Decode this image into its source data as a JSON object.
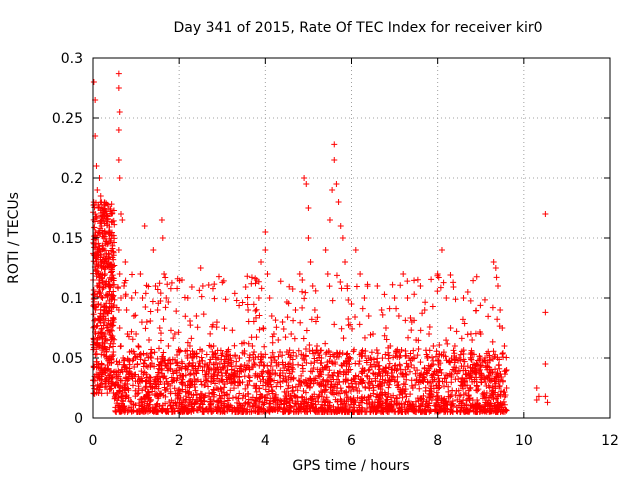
{
  "chart_data": {
    "type": "scatter",
    "title": "Day 341 of 2015, Rate Of TEC Index for receiver kir0",
    "xlabel": "GPS time / hours",
    "ylabel": "ROTI / TECUs",
    "xlim": [
      0,
      12
    ],
    "ylim": [
      0,
      0.3
    ],
    "xticks": [
      "0",
      "2",
      "4",
      "6",
      "8",
      "10",
      "12"
    ],
    "yticks": [
      "0",
      "0.05",
      "0.1",
      "0.15",
      "0.2",
      "0.25",
      "0.3"
    ],
    "grid": true,
    "marker": "+",
    "color": "#ff0000",
    "series": [
      {
        "name": "ROTI",
        "points": [
          [
            0.02,
            0.28
          ],
          [
            0.05,
            0.265
          ],
          [
            0.05,
            0.235
          ],
          [
            0.08,
            0.21
          ],
          [
            0.1,
            0.19
          ],
          [
            0.12,
            0.175
          ],
          [
            0.15,
            0.2
          ],
          [
            0.18,
            0.185
          ],
          [
            0.2,
            0.16
          ],
          [
            0.05,
            0.15
          ],
          [
            0.08,
            0.13
          ],
          [
            0.1,
            0.11
          ],
          [
            0.12,
            0.095
          ],
          [
            0.15,
            0.14
          ],
          [
            0.18,
            0.12
          ],
          [
            0.22,
            0.1
          ],
          [
            0.25,
            0.085
          ],
          [
            0.28,
            0.07
          ],
          [
            0.3,
            0.11
          ],
          [
            0.03,
            0.1
          ],
          [
            0.06,
            0.09
          ],
          [
            0.2,
            0.13
          ],
          [
            0.25,
            0.15
          ],
          [
            0.28,
            0.12
          ],
          [
            0.6,
            0.287
          ],
          [
            0.6,
            0.275
          ],
          [
            0.62,
            0.255
          ],
          [
            0.6,
            0.24
          ],
          [
            0.6,
            0.215
          ],
          [
            0.62,
            0.2
          ],
          [
            0.65,
            0.17
          ],
          [
            0.68,
            0.165
          ],
          [
            0.6,
            0.14
          ],
          [
            0.62,
            0.12
          ],
          [
            0.65,
            0.1
          ],
          [
            0.6,
            0.09
          ],
          [
            0.62,
            0.075
          ],
          [
            0.65,
            0.06
          ],
          [
            0.7,
            0.05
          ],
          [
            0.72,
            0.11
          ],
          [
            0.75,
            0.13
          ],
          [
            0.78,
            0.09
          ],
          [
            0.8,
            0.07
          ],
          [
            0.85,
            0.055
          ],
          [
            0.9,
            0.1
          ],
          [
            0.95,
            0.085
          ],
          [
            1.0,
            0.07
          ],
          [
            1.05,
            0.06
          ],
          [
            1.1,
            0.12
          ],
          [
            1.15,
            0.1
          ],
          [
            1.2,
            0.16
          ],
          [
            1.25,
            0.08
          ],
          [
            1.3,
            0.065
          ],
          [
            1.35,
            0.05
          ],
          [
            1.4,
            0.14
          ],
          [
            1.45,
            0.11
          ],
          [
            1.5,
            0.09
          ],
          [
            1.55,
            0.075
          ],
          [
            1.6,
            0.165
          ],
          [
            1.62,
            0.15
          ],
          [
            1.65,
            0.12
          ],
          [
            1.7,
            0.1
          ],
          [
            1.75,
            0.06
          ],
          [
            1.8,
            0.045
          ],
          [
            1.9,
            0.07
          ],
          [
            2.0,
            0.04
          ],
          [
            2.1,
            0.035
          ],
          [
            2.2,
            0.1
          ],
          [
            2.25,
            0.06
          ],
          [
            2.3,
            0.05
          ],
          [
            2.4,
            0.085
          ],
          [
            2.5,
            0.125
          ],
          [
            2.55,
            0.11
          ],
          [
            2.6,
            0.045
          ],
          [
            2.7,
            0.04
          ],
          [
            2.8,
            0.06
          ],
          [
            2.9,
            0.05
          ],
          [
            3.0,
            0.035
          ],
          [
            3.1,
            0.055
          ],
          [
            3.2,
            0.045
          ],
          [
            3.3,
            0.03
          ],
          [
            3.4,
            0.05
          ],
          [
            3.5,
            0.04
          ],
          [
            3.6,
            0.09
          ],
          [
            3.7,
            0.06
          ],
          [
            3.8,
            0.115
          ],
          [
            3.85,
            0.1
          ],
          [
            3.9,
            0.13
          ],
          [
            3.95,
            0.075
          ],
          [
            4.0,
            0.155
          ],
          [
            4.0,
            0.14
          ],
          [
            4.05,
            0.12
          ],
          [
            4.1,
            0.1
          ],
          [
            4.15,
            0.085
          ],
          [
            4.2,
            0.07
          ],
          [
            4.3,
            0.065
          ],
          [
            4.4,
            0.08
          ],
          [
            4.5,
            0.055
          ],
          [
            4.6,
            0.07
          ],
          [
            4.7,
            0.09
          ],
          [
            4.8,
            0.12
          ],
          [
            4.9,
            0.2
          ],
          [
            4.95,
            0.195
          ],
          [
            5.0,
            0.175
          ],
          [
            5.0,
            0.15
          ],
          [
            5.05,
            0.13
          ],
          [
            5.1,
            0.11
          ],
          [
            5.15,
            0.09
          ],
          [
            5.2,
            0.06
          ],
          [
            5.3,
            0.05
          ],
          [
            5.4,
            0.14
          ],
          [
            5.45,
            0.12
          ],
          [
            5.5,
            0.165
          ],
          [
            5.55,
            0.19
          ],
          [
            5.6,
            0.228
          ],
          [
            5.6,
            0.215
          ],
          [
            5.65,
            0.195
          ],
          [
            5.7,
            0.18
          ],
          [
            5.75,
            0.16
          ],
          [
            5.8,
            0.15
          ],
          [
            5.85,
            0.13
          ],
          [
            5.9,
            0.11
          ],
          [
            6.0,
            0.095
          ],
          [
            6.1,
            0.14
          ],
          [
            6.2,
            0.12
          ],
          [
            6.3,
            0.1
          ],
          [
            6.4,
            0.085
          ],
          [
            6.5,
            0.07
          ],
          [
            6.6,
            0.11
          ],
          [
            6.7,
            0.09
          ],
          [
            6.8,
            0.075
          ],
          [
            6.9,
            0.06
          ],
          [
            7.0,
            0.1
          ],
          [
            7.1,
            0.085
          ],
          [
            7.2,
            0.12
          ],
          [
            7.3,
            0.1
          ],
          [
            7.4,
            0.08
          ],
          [
            7.5,
            0.065
          ],
          [
            7.6,
            0.11
          ],
          [
            7.7,
            0.09
          ],
          [
            7.8,
            0.07
          ],
          [
            7.9,
            0.06
          ],
          [
            8.0,
            0.12
          ],
          [
            8.1,
            0.14
          ],
          [
            8.2,
            0.1
          ],
          [
            8.3,
            0.075
          ],
          [
            8.4,
            0.06
          ],
          [
            8.5,
            0.05
          ],
          [
            8.6,
            0.1
          ],
          [
            8.7,
            0.105
          ],
          [
            8.8,
            0.065
          ],
          [
            8.9,
            0.045
          ],
          [
            9.0,
            0.07
          ],
          [
            9.1,
            0.05
          ],
          [
            9.2,
            0.04
          ],
          [
            9.3,
            0.13
          ],
          [
            9.35,
            0.125
          ],
          [
            9.4,
            0.11
          ],
          [
            9.45,
            0.09
          ],
          [
            9.5,
            0.075
          ],
          [
            9.55,
            0.06
          ],
          [
            9.6,
            0.04
          ],
          [
            9.6,
            0.025
          ],
          [
            10.3,
            0.025
          ],
          [
            10.3,
            0.015
          ],
          [
            10.35,
            0.018
          ],
          [
            10.5,
            0.17
          ],
          [
            10.5,
            0.088
          ],
          [
            10.5,
            0.045
          ],
          [
            10.5,
            0.018
          ],
          [
            10.55,
            0.013
          ]
        ]
      }
    ],
    "dense_band": {
      "description": "dense cloud of low ROTI values between 0.005 and 0.05 TECU/min from 0.5 h to 9.6 h",
      "x_range": [
        0.5,
        9.6
      ],
      "y_range": [
        0.005,
        0.05
      ]
    }
  }
}
